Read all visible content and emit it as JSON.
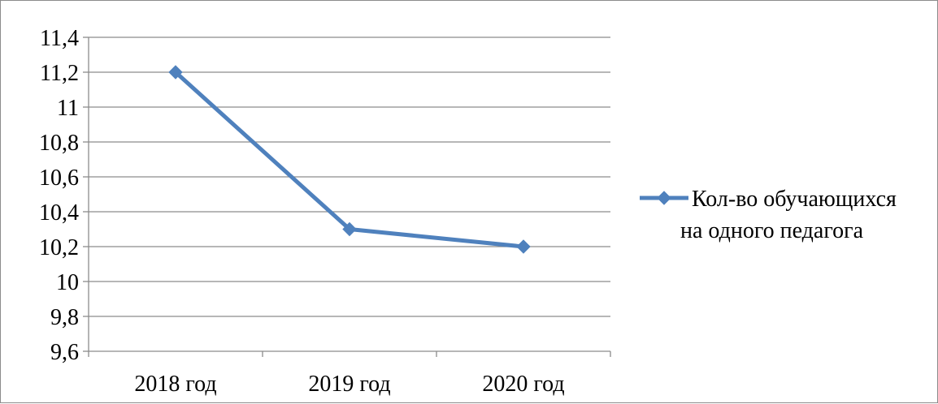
{
  "chart_data": {
    "type": "line",
    "categories": [
      "2018 год",
      "2019 год",
      "2020 год"
    ],
    "series": [
      {
        "name": "Кол-во обучающихся на одного педагога",
        "name_lines": [
          "Кол-во обучающихся",
          "на одного педагога"
        ],
        "values": [
          11.2,
          10.3,
          10.2
        ],
        "color": "#4F81BD"
      }
    ],
    "ylim": [
      9.6,
      11.4
    ],
    "ytick_values": [
      9.6,
      9.8,
      10,
      10.2,
      10.4,
      10.6,
      10.8,
      11,
      11.2,
      11.4
    ],
    "ytick_labels": [
      "9,6",
      "9,8",
      "10",
      "10,2",
      "10,4",
      "10,6",
      "10,8",
      "11",
      "11,2",
      "11,4"
    ],
    "grid": true,
    "legend_position": "right",
    "gridline_color": "#8c8c8c",
    "axis_color": "#8c8c8c"
  }
}
